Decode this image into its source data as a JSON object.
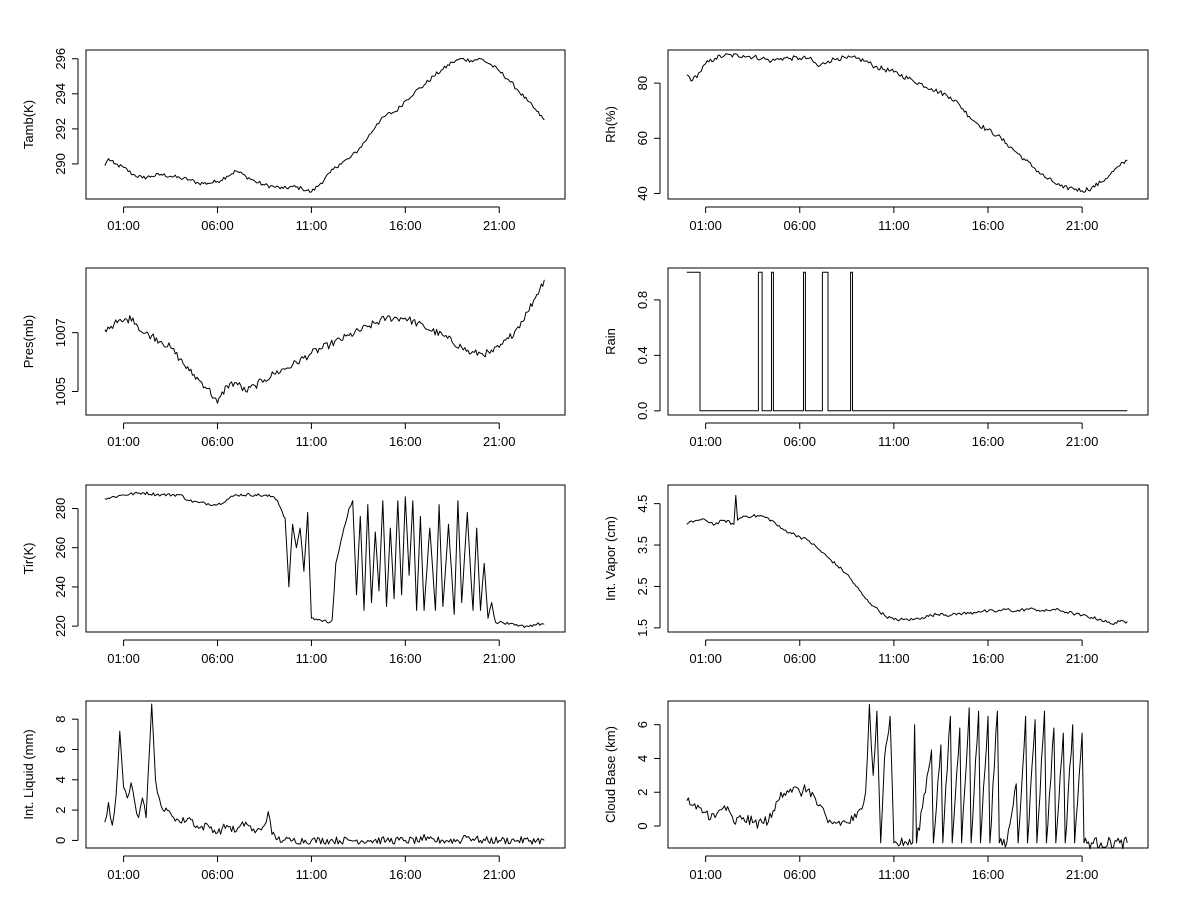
{
  "chart_data": [
    {
      "type": "line",
      "ylabel": "Tamb(K)",
      "xlabel": "",
      "xlim": [
        -1.0,
        24.5
      ],
      "ylim": [
        288.0,
        296.5
      ],
      "x_ticks": [
        "01:00",
        "06:00",
        "11:00",
        "16:00",
        "21:00"
      ],
      "y_ticks": [
        290,
        292,
        294,
        296
      ],
      "series": [
        {
          "x": [
            0,
            0.2,
            0.5,
            1,
            1.5,
            2,
            2.5,
            3,
            3.5,
            4,
            4.5,
            5,
            5.5,
            6,
            6.5,
            7,
            7.5,
            8,
            8.5,
            9,
            9.5,
            10,
            10.5,
            11,
            11.5,
            12,
            12.5,
            13,
            13.5,
            14,
            14.5,
            15,
            15.5,
            16,
            16.5,
            17,
            17.5,
            18,
            18.5,
            19,
            19.5,
            20,
            20.5,
            21,
            21.5,
            22,
            22.5,
            23,
            23.4
          ],
          "y": [
            289.9,
            290.3,
            290.0,
            289.8,
            289.4,
            289.2,
            289.3,
            289.4,
            289.3,
            289.2,
            289.1,
            288.9,
            288.9,
            289.0,
            289.3,
            289.6,
            289.3,
            289.0,
            288.8,
            288.7,
            288.6,
            288.7,
            288.6,
            288.4,
            288.9,
            289.5,
            290.0,
            290.3,
            290.8,
            291.5,
            292.3,
            292.8,
            293.0,
            293.6,
            294.1,
            294.5,
            295.0,
            295.4,
            295.8,
            296.0,
            295.9,
            296.0,
            295.7,
            295.3,
            294.8,
            294.2,
            293.6,
            293.0,
            292.5
          ],
          "jitter": 0.12
        }
      ]
    },
    {
      "type": "line",
      "ylabel": "Rh(%)",
      "xlabel": "",
      "xlim": [
        -1.0,
        24.5
      ],
      "ylim": [
        38,
        92
      ],
      "x_ticks": [
        "01:00",
        "06:00",
        "11:00",
        "16:00",
        "21:00"
      ],
      "y_ticks": [
        40,
        60,
        80
      ],
      "series": [
        {
          "x": [
            0,
            0.3,
            0.7,
            1,
            1.5,
            2,
            3,
            4,
            4.5,
            5,
            5.5,
            6,
            6.5,
            7,
            7.5,
            8,
            8.5,
            9,
            9.5,
            10,
            11,
            12,
            13,
            14,
            14.5,
            15,
            15.5,
            16,
            16.5,
            17,
            17.5,
            18,
            18.5,
            19,
            19.5,
            20,
            20.5,
            21,
            21.5,
            22,
            22.5,
            23,
            23.4
          ],
          "y": [
            83,
            81,
            84,
            87,
            89,
            90,
            90,
            89,
            88,
            89,
            89,
            89,
            89,
            86,
            88,
            89,
            89,
            89,
            88,
            86,
            84,
            81,
            78,
            75,
            72,
            68,
            65,
            63,
            61,
            58,
            55,
            52,
            49,
            46,
            44,
            42,
            42,
            41,
            42,
            44,
            47,
            50,
            52
          ],
          "jitter": 0.9
        }
      ]
    },
    {
      "type": "line",
      "ylabel": "Pres(mb)",
      "xlabel": "",
      "xlim": [
        -1.0,
        24.5
      ],
      "ylim": [
        1004.2,
        1009.2
      ],
      "x_ticks": [
        "01:00",
        "06:00",
        "11:00",
        "16:00",
        "21:00"
      ],
      "y_ticks": [
        1005,
        1007
      ],
      "series": [
        {
          "x": [
            0,
            0.5,
            1,
            1.5,
            2,
            2.5,
            3,
            3.5,
            4,
            4.5,
            5,
            5.5,
            6,
            6.5,
            7,
            7.5,
            8,
            8.5,
            9,
            10,
            11,
            12,
            13,
            14,
            15,
            16,
            17,
            18,
            19,
            19.5,
            20,
            20.5,
            21,
            21.5,
            22,
            22.5,
            23,
            23.4
          ],
          "y": [
            1007.1,
            1007.3,
            1007.4,
            1007.5,
            1007.0,
            1006.9,
            1006.7,
            1006.5,
            1006.1,
            1005.7,
            1005.4,
            1005.1,
            1004.6,
            1005.2,
            1005.3,
            1005.0,
            1005.2,
            1005.4,
            1005.6,
            1005.9,
            1006.3,
            1006.6,
            1006.9,
            1007.2,
            1007.5,
            1007.5,
            1007.2,
            1006.9,
            1006.5,
            1006.3,
            1006.3,
            1006.3,
            1006.5,
            1006.8,
            1007.2,
            1007.7,
            1008.3,
            1008.8
          ],
          "jitter": 0.13
        }
      ]
    },
    {
      "type": "line",
      "ylabel": "Rain",
      "xlabel": "",
      "xlim": [
        -1.0,
        24.5
      ],
      "ylim": [
        -0.03,
        1.03
      ],
      "x_ticks": [
        "01:00",
        "06:00",
        "11:00",
        "16:00",
        "21:00"
      ],
      "y_ticks": [
        "0.0",
        "0.4",
        "0.8"
      ],
      "series": [
        {
          "x": [
            0,
            0.7,
            0.7,
            0.8,
            0.8,
            3.8,
            3.8,
            4.0,
            4.0,
            4.5,
            4.5,
            4.6,
            4.6,
            6.2,
            6.2,
            6.3,
            6.3,
            7.2,
            7.2,
            7.5,
            7.5,
            8.7,
            8.7,
            8.8,
            8.8,
            23.4
          ],
          "y": [
            1,
            1,
            0,
            0,
            0,
            0,
            1,
            1,
            0,
            0,
            1,
            1,
            0,
            0,
            1,
            1,
            0,
            0,
            1,
            1,
            0,
            0,
            1,
            1,
            0,
            0
          ],
          "jitter": 0
        }
      ]
    },
    {
      "type": "line",
      "ylabel": "Tir(K)",
      "xlabel": "",
      "xlim": [
        -1.0,
        24.5
      ],
      "ylim": [
        217,
        292
      ],
      "x_ticks": [
        "01:00",
        "06:00",
        "11:00",
        "16:00",
        "21:00"
      ],
      "y_ticks": [
        220,
        240,
        260,
        280
      ],
      "series": [
        {
          "x": [
            0,
            1,
            2,
            3,
            4,
            4.5,
            5,
            6,
            7,
            8,
            9,
            9.2,
            9.6,
            9.8,
            10.0,
            10.2,
            10.4,
            10.6,
            10.8,
            11,
            11.5,
            12,
            12.1,
            12.3,
            13,
            13.2,
            13.4,
            13.6,
            13.8,
            14,
            14.2,
            14.4,
            14.6,
            14.8,
            15,
            15.2,
            15.4,
            15.6,
            15.8,
            16,
            16.2,
            16.4,
            16.6,
            16.8,
            17,
            17.3,
            17.6,
            17.8,
            18,
            18.3,
            18.6,
            18.8,
            19,
            19.3,
            19.6,
            19.8,
            20,
            20.2,
            20.4,
            20.6,
            20.8,
            21,
            21.5,
            22,
            22.5,
            23,
            23.4
          ],
          "y": [
            285,
            287,
            288,
            287,
            287,
            284,
            283,
            282,
            287,
            287,
            286,
            284,
            275,
            240,
            272,
            260,
            270,
            248,
            278,
            224,
            223,
            222,
            223,
            252,
            280,
            284,
            236,
            276,
            228,
            282,
            232,
            268,
            238,
            284,
            230,
            270,
            234,
            284,
            236,
            286,
            246,
            284,
            228,
            276,
            228,
            270,
            228,
            282,
            230,
            272,
            226,
            284,
            232,
            278,
            228,
            270,
            228,
            252,
            224,
            232,
            222,
            222,
            221,
            220,
            220,
            221,
            221
          ],
          "jitter": 0.8
        }
      ]
    },
    {
      "type": "line",
      "ylabel": "Int. Vapor (cm)",
      "xlabel": "",
      "xlim": [
        -1.0,
        24.5
      ],
      "ylim": [
        1.4,
        4.95
      ],
      "x_ticks": [
        "01:00",
        "06:00",
        "11:00",
        "16:00",
        "21:00"
      ],
      "y_ticks": [
        "1.5",
        "2.5",
        "3.5",
        "4.5"
      ],
      "series": [
        {
          "x": [
            0,
            0.5,
            1,
            1.5,
            2,
            2.5,
            2.6,
            2.7,
            3,
            3.5,
            4,
            4.5,
            5,
            5.5,
            6,
            6.5,
            7,
            7.5,
            8,
            8.5,
            9,
            9.5,
            10,
            10.5,
            11,
            11.5,
            12,
            12.5,
            13,
            13.5,
            14,
            14.5,
            15,
            15.5,
            16,
            16.5,
            17,
            17.5,
            18,
            18.5,
            19,
            19.5,
            20,
            20.5,
            21,
            21.5,
            22,
            22.5,
            23,
            23.4
          ],
          "y": [
            4.0,
            4.1,
            4.1,
            4.0,
            4.1,
            4.0,
            4.7,
            4.1,
            4.2,
            4.2,
            4.2,
            4.1,
            3.9,
            3.8,
            3.7,
            3.6,
            3.4,
            3.2,
            3.0,
            2.8,
            2.5,
            2.2,
            2.0,
            1.8,
            1.7,
            1.7,
            1.7,
            1.75,
            1.8,
            1.85,
            1.8,
            1.85,
            1.85,
            1.9,
            1.9,
            1.9,
            1.95,
            1.9,
            1.95,
            1.95,
            1.9,
            1.95,
            1.9,
            1.85,
            1.8,
            1.75,
            1.7,
            1.6,
            1.65,
            1.65
          ],
          "jitter": 0.04
        }
      ]
    },
    {
      "type": "line",
      "ylabel": "Int. Liquid (mm)",
      "xlabel": "",
      "xlim": [
        -1.0,
        24.5
      ],
      "ylim": [
        -0.5,
        9.2
      ],
      "x_ticks": [
        "01:00",
        "06:00",
        "11:00",
        "16:00",
        "21:00"
      ],
      "y_ticks": [
        0,
        2,
        4,
        6,
        8
      ],
      "series": [
        {
          "x": [
            0,
            0.2,
            0.4,
            0.6,
            0.8,
            1.0,
            1.2,
            1.4,
            1.6,
            1.8,
            2.0,
            2.2,
            2.4,
            2.5,
            2.7,
            2.9,
            3.1,
            3.5,
            4,
            4.5,
            5,
            5.5,
            6,
            6.5,
            7,
            7.5,
            8,
            8.5,
            8.7,
            8.9,
            9.2,
            9.5,
            10,
            11,
            12,
            13,
            14,
            15,
            16,
            16.9,
            17.0,
            17.1,
            18,
            19,
            19.1,
            20,
            21,
            22,
            23,
            23.4
          ],
          "y": [
            1.2,
            2.5,
            1.0,
            3.0,
            7.2,
            3.5,
            2.8,
            3.8,
            2.5,
            1.5,
            2.8,
            1.5,
            6.5,
            9.0,
            4.0,
            2.8,
            2.0,
            1.8,
            1.2,
            1.5,
            0.8,
            1.0,
            0.5,
            1.0,
            0.6,
            1.2,
            0.5,
            1.0,
            1.9,
            0.4,
            0.1,
            0,
            0,
            0,
            0,
            0,
            0,
            0,
            0,
            0,
            0.4,
            0,
            0,
            0,
            0.3,
            0,
            0,
            0,
            0,
            0
          ],
          "jitter": 0.25
        }
      ]
    },
    {
      "type": "line",
      "ylabel": "Cloud Base (km)",
      "xlabel": "",
      "xlim": [
        -1.0,
        24.5
      ],
      "ylim": [
        -1.3,
        7.4
      ],
      "x_ticks": [
        "01:00",
        "06:00",
        "11:00",
        "16:00",
        "21:00"
      ],
      "y_ticks": [
        0,
        2,
        4,
        6
      ],
      "series": [
        {
          "x": [
            0,
            0.5,
            1,
            1.5,
            2,
            2.5,
            3,
            3.5,
            4,
            4.5,
            5,
            5.5,
            6,
            6.5,
            7,
            7.5,
            8,
            8.5,
            9,
            9.3,
            9.5,
            9.7,
            9.9,
            10.1,
            10.3,
            10.5,
            10.8,
            11,
            12,
            12.1,
            12.2,
            13,
            13.1,
            13.5,
            13.6,
            14,
            14.1,
            14.5,
            14.6,
            15,
            15.1,
            15.5,
            15.6,
            16,
            16.1,
            16.5,
            16.6,
            17,
            17.5,
            17.6,
            18,
            18.1,
            18.5,
            18.6,
            19,
            19.1,
            19.5,
            19.6,
            20,
            20.1,
            20.5,
            20.6,
            21,
            21.1,
            21.5,
            22,
            23,
            23.4
          ],
          "y": [
            1.5,
            1.0,
            0.8,
            0.5,
            1.2,
            0.2,
            0.5,
            0.2,
            0.2,
            0.5,
            2.0,
            2.2,
            2.0,
            2.2,
            1.2,
            0.2,
            0.2,
            0.2,
            0.5,
            1.0,
            2.0,
            7.2,
            3.0,
            6.8,
            -1.0,
            4.0,
            6.5,
            -1.0,
            -1.0,
            6.0,
            -1.0,
            4.5,
            -1.0,
            4.8,
            -1.0,
            6.5,
            -1.0,
            5.8,
            -1.0,
            7.0,
            -1.0,
            6.8,
            -1.0,
            6.5,
            -1.0,
            6.8,
            -1.0,
            -1.0,
            2.5,
            -1.0,
            6.5,
            -1.0,
            6.3,
            -1.0,
            6.8,
            -1.0,
            5.8,
            -1.0,
            5.5,
            -1.0,
            6.0,
            -1.0,
            5.5,
            -1.0,
            -1.0,
            -1.0,
            -1.0,
            -1.0
          ],
          "jitter": 0.35
        }
      ]
    }
  ]
}
